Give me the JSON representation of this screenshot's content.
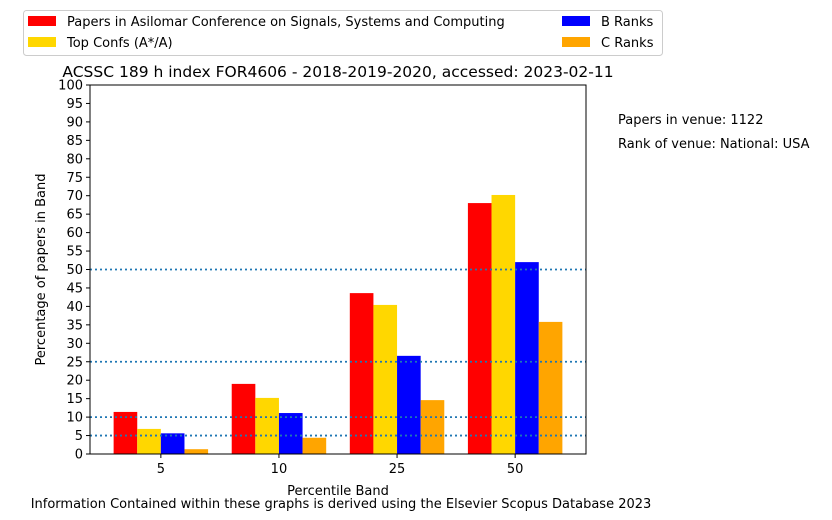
{
  "chart_data": {
    "type": "bar",
    "title": "ACSSC 189 h index FOR4606 - 2018-2019-2020, accessed: 2023-02-11",
    "xlabel": "Percentile Band",
    "ylabel": "Percentage of papers in Band",
    "categories": [
      "5",
      "10",
      "25",
      "50"
    ],
    "ylim": [
      0,
      100
    ],
    "yticks": [
      0,
      5,
      10,
      15,
      20,
      25,
      30,
      35,
      40,
      45,
      50,
      55,
      60,
      65,
      70,
      75,
      80,
      85,
      90,
      95,
      100
    ],
    "series": [
      {
        "name": "Papers in Asilomar Conference on Signals, Systems and Computing",
        "color": "#ff0000",
        "values": [
          11.4,
          19.0,
          43.6,
          68.0
        ]
      },
      {
        "name": "Top Confs (A*/A)",
        "color": "#ffd700",
        "values": [
          6.8,
          15.2,
          40.4,
          70.2
        ]
      },
      {
        "name": "B Ranks",
        "color": "#0000ff",
        "values": [
          5.6,
          11.1,
          26.6,
          52.0
        ]
      },
      {
        "name": "C Ranks",
        "color": "#ffa500",
        "values": [
          1.3,
          4.4,
          14.6,
          35.8
        ]
      }
    ],
    "reference_lines": [
      5,
      10,
      25,
      50
    ],
    "reference_line_color": "#1f77b4",
    "legend_position": "top",
    "annotations": [
      "Papers in venue: 1122",
      "Rank of venue: National: USA"
    ],
    "footer": "Information Contained within these graphs is derived using the Elsevier Scopus Database 2023"
  }
}
